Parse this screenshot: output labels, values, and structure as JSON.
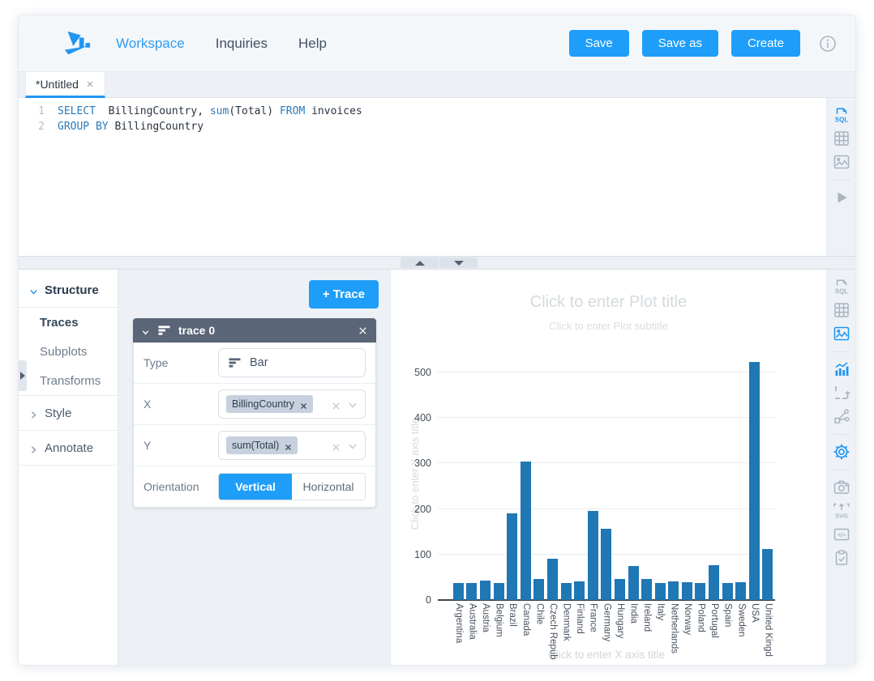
{
  "colors": {
    "accent": "#1e9ef9",
    "nav_active": "#2e9df5",
    "bar": "#1f77b4",
    "trace_header": "#5a6577",
    "rail_icon": "#a9b4c0",
    "rail_icon_active": "#2196f3"
  },
  "header": {
    "nav": [
      {
        "id": "workspace",
        "label": "Workspace",
        "active": true
      },
      {
        "id": "inquiries",
        "label": "Inquiries",
        "active": false
      },
      {
        "id": "help",
        "label": "Help",
        "active": false
      }
    ],
    "buttons": [
      {
        "id": "save",
        "label": "Save"
      },
      {
        "id": "save-as",
        "label": "Save as"
      },
      {
        "id": "create",
        "label": "Create"
      }
    ]
  },
  "tabs": {
    "active_label": "*Untitled"
  },
  "editor": {
    "lines": [
      {
        "num": "1",
        "tokens": [
          [
            "SELECT",
            "kw"
          ],
          [
            "  BillingCountry, ",
            "pl"
          ],
          [
            "sum",
            "kw"
          ],
          [
            "(Total) ",
            "pl"
          ],
          [
            "FROM",
            "kw"
          ],
          [
            " invoices",
            "pl"
          ]
        ]
      },
      {
        "num": "2",
        "tokens": [
          [
            "GROUP BY",
            "kw"
          ],
          [
            " BillingCountry",
            "pl"
          ]
        ]
      }
    ]
  },
  "editor_rail": [
    {
      "name": "sql-file",
      "active": true
    },
    {
      "name": "table-grid",
      "active": false
    },
    {
      "name": "image-chart",
      "active": false
    },
    {
      "divider": true
    },
    {
      "name": "play",
      "active": false
    }
  ],
  "sidebar": {
    "items": [
      {
        "label": "Structure",
        "kind": "section",
        "chevron": "down",
        "open": true,
        "divider_before": false
      },
      {
        "label": "Traces",
        "kind": "sub",
        "active": true,
        "divider_before": true
      },
      {
        "label": "Subplots",
        "kind": "sub",
        "active": false
      },
      {
        "label": "Transforms",
        "kind": "sub",
        "active": false
      },
      {
        "label": "Style",
        "kind": "section",
        "chevron": "right",
        "divider_before": true
      },
      {
        "label": "Annotate",
        "kind": "section",
        "chevron": "right",
        "divider_before": true,
        "divider_after": true
      }
    ]
  },
  "panel": {
    "add_trace_label": "+ Trace",
    "trace_title": "trace 0",
    "type_label": "Type",
    "type_value": "Bar",
    "x_label": "X",
    "x_chip": "BillingCountry",
    "y_label": "Y",
    "y_chip": "sum(Total)",
    "orientation_label": "Orientation",
    "vertical_label": "Vertical",
    "horizontal_label": "Horizontal"
  },
  "chart": {
    "title_placeholder": "Click to enter Plot title",
    "subtitle_placeholder": "Click to enter Plot subtitle",
    "x_title_placeholder": "Click to enter X axis title",
    "y_title_placeholder": "Click to enter Y axis title"
  },
  "chart_data": {
    "type": "bar",
    "title": "",
    "xlabel": "",
    "ylabel": "",
    "categories": [
      "Argentina",
      "Australia",
      "Austria",
      "Belgium",
      "Brazil",
      "Canada",
      "Chile",
      "Czech Repub",
      "Denmark",
      "Finland",
      "France",
      "Germany",
      "Hungary",
      "India",
      "Ireland",
      "Italy",
      "Netherlands",
      "Norway",
      "Poland",
      "Portugal",
      "Spain",
      "Sweden",
      "USA",
      "United Kingd"
    ],
    "values": [
      37.62,
      37.62,
      42.62,
      37.62,
      190.1,
      303.96,
      46.62,
      90.24,
      37.62,
      41.62,
      195.1,
      156.48,
      45.62,
      75.26,
      45.62,
      37.62,
      40.62,
      39.62,
      37.62,
      77.24,
      37.62,
      38.62,
      523.06,
      112.86
    ],
    "yticks": [
      0,
      100,
      200,
      300,
      400,
      500
    ],
    "ylim": [
      0,
      540
    ],
    "grid": true,
    "legend": false,
    "bar_color": "#1f77b4"
  },
  "chart_rail": [
    {
      "name": "sql-file",
      "active": false
    },
    {
      "name": "table-grid",
      "active": false
    },
    {
      "name": "image-chart",
      "active": true
    },
    {
      "divider": true
    },
    {
      "name": "bar-line-chart",
      "active": true
    },
    {
      "name": "subplots",
      "active": false
    },
    {
      "name": "transforms",
      "active": false
    },
    {
      "divider": true
    },
    {
      "name": "gear",
      "active": true
    },
    {
      "divider": true
    },
    {
      "name": "camera",
      "active": false
    },
    {
      "name": "svg-export",
      "active": false
    },
    {
      "name": "code-embed",
      "active": false
    },
    {
      "name": "clipboard-check",
      "active": false
    }
  ]
}
